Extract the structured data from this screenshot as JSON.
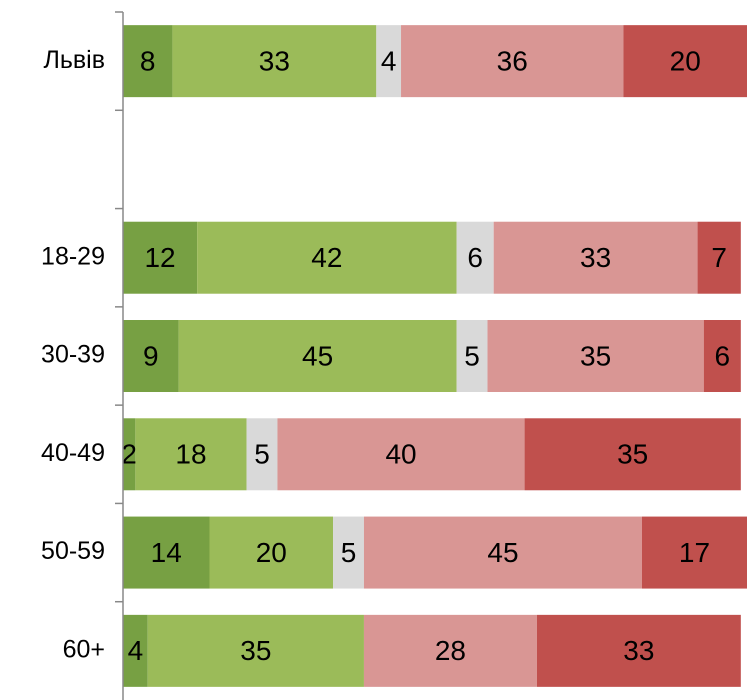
{
  "chart_data": {
    "type": "stacked_bar_horizontal",
    "categories": [
      "Львів",
      null,
      "18-29",
      "30-39",
      "40-49",
      "50-59",
      "60+"
    ],
    "series": [
      {
        "color": "#77a043",
        "values": [
          8,
          null,
          12,
          9,
          2,
          14,
          4
        ]
      },
      {
        "color": "#9bbb59",
        "values": [
          33,
          null,
          42,
          45,
          18,
          20,
          35
        ]
      },
      {
        "color": "#d9d9d9",
        "values": [
          4,
          null,
          6,
          5,
          5,
          5,
          null
        ]
      },
      {
        "color": "#d99694",
        "values": [
          36,
          null,
          33,
          35,
          40,
          45,
          28
        ]
      },
      {
        "color": "#c0504d",
        "values": [
          20,
          null,
          7,
          6,
          35,
          17,
          33
        ]
      }
    ],
    "xlim": [
      0,
      101
    ]
  }
}
